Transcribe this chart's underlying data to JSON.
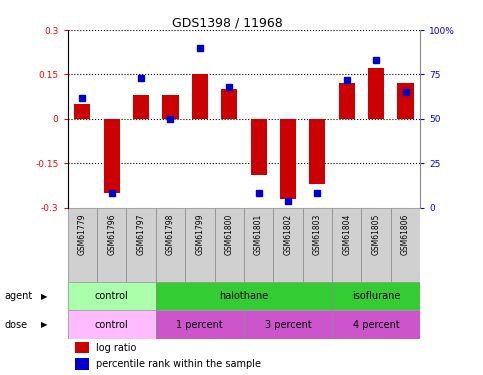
{
  "title": "GDS1398 / 11968",
  "samples": [
    "GSM61779",
    "GSM61796",
    "GSM61797",
    "GSM61798",
    "GSM61799",
    "GSM61800",
    "GSM61801",
    "GSM61802",
    "GSM61803",
    "GSM61804",
    "GSM61805",
    "GSM61806"
  ],
  "log_ratio": [
    0.05,
    -0.25,
    0.08,
    0.08,
    0.15,
    0.1,
    -0.19,
    -0.27,
    -0.22,
    0.12,
    0.17,
    0.12
  ],
  "percentile_rank": [
    62,
    8,
    73,
    50,
    90,
    68,
    8,
    4,
    8,
    72,
    83,
    65
  ],
  "ylim_left": [
    -0.3,
    0.3
  ],
  "ylim_right": [
    0,
    100
  ],
  "yticks_left": [
    -0.3,
    -0.15,
    0.0,
    0.15,
    0.3
  ],
  "ytick_labels_left": [
    "-0.3",
    "-0.15",
    "0",
    "0.15",
    "0.3"
  ],
  "yticks_right": [
    0,
    25,
    50,
    75,
    100
  ],
  "ytick_labels_right": [
    "0",
    "25",
    "50",
    "75",
    "100%"
  ],
  "bar_color": "#cc0000",
  "dot_color": "#0000cc",
  "agent_groups": [
    {
      "label": "control",
      "start": 0,
      "end": 3,
      "color": "#aaffaa"
    },
    {
      "label": "halothane",
      "start": 3,
      "end": 9,
      "color": "#33cc33"
    },
    {
      "label": "isoflurane",
      "start": 9,
      "end": 12,
      "color": "#33cc33"
    }
  ],
  "dose_groups": [
    {
      "label": "control",
      "start": 0,
      "end": 3,
      "color": "#ffbbff"
    },
    {
      "label": "1 percent",
      "start": 3,
      "end": 6,
      "color": "#cc55cc"
    },
    {
      "label": "3 percent",
      "start": 6,
      "end": 9,
      "color": "#cc55cc"
    },
    {
      "label": "4 percent",
      "start": 9,
      "end": 12,
      "color": "#cc55cc"
    }
  ],
  "legend_bar_label": "log ratio",
  "legend_dot_label": "percentile rank within the sample",
  "label_agent": "agent",
  "label_dose": "dose",
  "sample_box_color": "#d0d0d0",
  "sample_box_edge": "#888888"
}
